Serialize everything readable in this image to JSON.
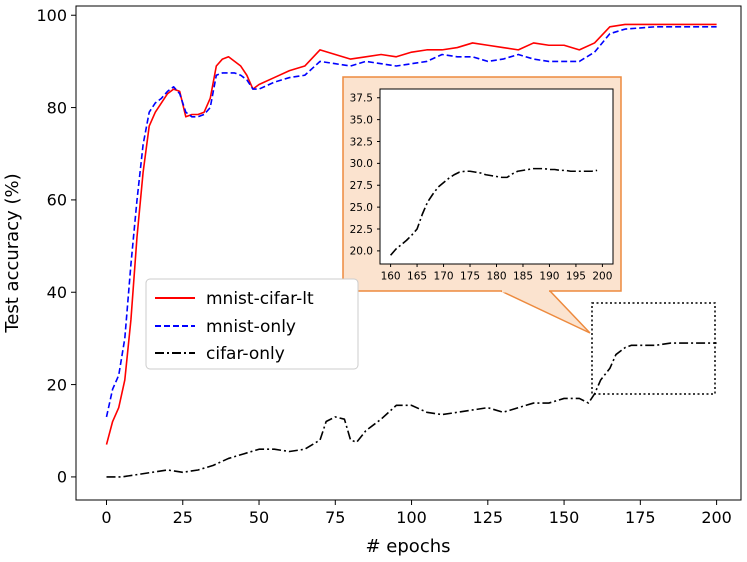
{
  "chart_data": [
    {
      "type": "line",
      "xlabel": "# epochs",
      "ylabel": "Test accuracy (%)",
      "xlim": [
        -10,
        208
      ],
      "ylim": [
        -5,
        102
      ],
      "xticks": [
        0,
        25,
        50,
        75,
        100,
        125,
        150,
        175,
        200
      ],
      "yticks": [
        0,
        20,
        40,
        60,
        80,
        100
      ],
      "grid": false,
      "legend_position": "center-left",
      "series": [
        {
          "name": "mnist-cifar-lt",
          "color": "#ff0000",
          "style": "solid",
          "x": [
            0,
            2,
            4,
            6,
            8,
            10,
            12,
            14,
            16,
            18,
            20,
            22,
            24,
            26,
            28,
            30,
            32,
            34,
            36,
            38,
            40,
            42,
            44,
            46,
            48,
            50,
            55,
            60,
            65,
            70,
            75,
            80,
            85,
            90,
            95,
            100,
            105,
            110,
            115,
            120,
            125,
            130,
            135,
            140,
            145,
            150,
            155,
            160,
            165,
            170,
            180,
            190,
            200
          ],
          "y": [
            7,
            12,
            15,
            21,
            34,
            52,
            66,
            76,
            79,
            81,
            83,
            84,
            83.5,
            78,
            78.5,
            78.5,
            79,
            82,
            89,
            90.5,
            91,
            90,
            89,
            87,
            84,
            85,
            86.5,
            88,
            89,
            92.5,
            91.5,
            90.5,
            91,
            91.5,
            91,
            92,
            92.5,
            92.5,
            93,
            94,
            93.5,
            93,
            92.5,
            94,
            93.5,
            93.5,
            92.5,
            94,
            97.5,
            98,
            98,
            98,
            98
          ]
        },
        {
          "name": "mnist-only",
          "color": "#0000ff",
          "style": "dashed",
          "x": [
            0,
            2,
            4,
            6,
            8,
            10,
            12,
            14,
            16,
            18,
            20,
            22,
            24,
            26,
            28,
            30,
            32,
            34,
            36,
            38,
            40,
            42,
            44,
            46,
            48,
            50,
            55,
            60,
            65,
            70,
            75,
            80,
            85,
            90,
            95,
            100,
            105,
            110,
            115,
            120,
            125,
            130,
            135,
            140,
            145,
            150,
            155,
            160,
            165,
            170,
            180,
            190,
            200
          ],
          "y": [
            13,
            19,
            22,
            30,
            46,
            60,
            72,
            79,
            81,
            82,
            83.5,
            84.5,
            83,
            79,
            78,
            78,
            78.5,
            80,
            87,
            87.5,
            87.5,
            87.5,
            87,
            86,
            84,
            84,
            85.5,
            86.5,
            87,
            90,
            89.5,
            89,
            90,
            89.5,
            89,
            89.5,
            90,
            91.5,
            91,
            91,
            90,
            90.5,
            91.5,
            90.5,
            90,
            90,
            90,
            92,
            96,
            97,
            97.5,
            97.5,
            97.5
          ]
        },
        {
          "name": "cifar-only",
          "color": "#000000",
          "style": "dashdot",
          "x": [
            0,
            5,
            10,
            15,
            20,
            25,
            30,
            35,
            40,
            45,
            50,
            55,
            60,
            65,
            70,
            72,
            75,
            78,
            80,
            82,
            85,
            88,
            90,
            95,
            100,
            105,
            110,
            115,
            120,
            125,
            130,
            135,
            140,
            145,
            150,
            155,
            158,
            160,
            162,
            165,
            167,
            170,
            172,
            175,
            180,
            185,
            190,
            195,
            200
          ],
          "y": [
            0,
            0,
            0.5,
            1,
            1.5,
            1,
            1.5,
            2.5,
            4,
            5,
            6,
            6,
            5.5,
            6,
            8,
            12,
            13,
            12.5,
            8,
            7.5,
            10,
            11.5,
            12.5,
            15.5,
            15.5,
            14,
            13.5,
            14,
            14.5,
            15,
            14,
            15,
            16,
            16,
            17,
            17,
            16,
            18,
            21,
            23.5,
            26.5,
            28,
            28.5,
            28.5,
            28.5,
            29,
            29,
            29,
            29
          ]
        }
      ]
    },
    {
      "type": "line",
      "xlim": [
        158,
        202
      ],
      "ylim": [
        18.5,
        38.5
      ],
      "xticks": [
        160,
        165,
        170,
        175,
        180,
        185,
        190,
        195,
        200
      ],
      "yticks": [
        20.0,
        22.5,
        25.0,
        27.5,
        30.0,
        32.5,
        35.0,
        37.5
      ],
      "series": [
        {
          "color": "#000000",
          "style": "dashdot",
          "x": [
            160,
            161,
            162,
            163,
            164,
            165,
            166,
            167,
            168,
            169,
            170,
            171,
            172,
            173,
            174,
            175,
            176,
            177,
            178,
            179,
            180,
            181,
            182,
            183,
            184,
            185,
            186,
            187,
            188,
            189,
            190,
            191,
            192,
            193,
            194,
            195,
            196,
            197,
            198,
            199
          ],
          "y": [
            19.5,
            20.2,
            20.7,
            21.2,
            21.8,
            22.5,
            24.2,
            25.6,
            26.5,
            27.3,
            27.8,
            28.3,
            28.7,
            29,
            29.1,
            29.1,
            29,
            28.9,
            28.7,
            28.6,
            28.5,
            28.4,
            28.4,
            28.8,
            29.1,
            29.2,
            29.3,
            29.4,
            29.4,
            29.4,
            29.3,
            29.3,
            29.2,
            29.2,
            29.1,
            29.1,
            29.1,
            29.1,
            29.1,
            29.2
          ]
        }
      ]
    }
  ]
}
